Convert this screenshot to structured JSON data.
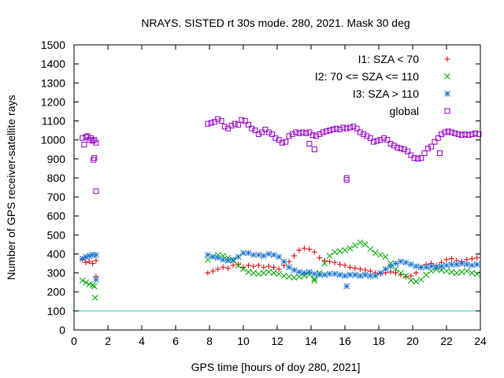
{
  "chart_data": {
    "type": "scatter",
    "title": "NRAYS. SISTED rt 30s mode. 280, 2021. Mask 30 deg",
    "xlabel": "GPS time [hours of doy 280, 2021]",
    "ylabel": "Number of GPS receiver-satellite rays",
    "xlim": [
      0,
      24
    ],
    "ylim": [
      0,
      1500
    ],
    "xticks": [
      0,
      2,
      4,
      6,
      8,
      10,
      12,
      14,
      16,
      18,
      20,
      22,
      24
    ],
    "yticks": [
      0,
      100,
      200,
      300,
      400,
      500,
      600,
      700,
      800,
      900,
      1000,
      1100,
      1200,
      1300,
      1400,
      1500
    ],
    "reference_line": {
      "y": 100,
      "color": "#33cccc"
    },
    "legend_position": "top-right",
    "series": [
      {
        "name": "I1: SZA < 70",
        "marker": "plus",
        "color": "#dd0000",
        "points": [
          [
            0.5,
            370
          ],
          [
            0.7,
            355
          ],
          [
            0.9,
            360
          ],
          [
            1.1,
            350
          ],
          [
            1.3,
            365
          ],
          [
            1.3,
            280
          ],
          [
            7.9,
            300
          ],
          [
            8.2,
            310
          ],
          [
            8.5,
            320
          ],
          [
            8.8,
            330
          ],
          [
            9.1,
            325
          ],
          [
            9.4,
            340
          ],
          [
            9.7,
            345
          ],
          [
            10.0,
            330
          ],
          [
            10.3,
            340
          ],
          [
            10.6,
            335
          ],
          [
            10.9,
            340
          ],
          [
            11.2,
            330
          ],
          [
            11.5,
            335
          ],
          [
            11.8,
            330
          ],
          [
            12.1,
            320
          ],
          [
            12.4,
            340
          ],
          [
            12.7,
            360
          ],
          [
            13.0,
            390
          ],
          [
            13.3,
            420
          ],
          [
            13.6,
            430
          ],
          [
            13.9,
            425
          ],
          [
            14.2,
            410
          ],
          [
            14.5,
            380
          ],
          [
            14.8,
            365
          ],
          [
            15.1,
            360
          ],
          [
            15.4,
            355
          ],
          [
            15.7,
            345
          ],
          [
            16.0,
            340
          ],
          [
            16.3,
            330
          ],
          [
            16.6,
            325
          ],
          [
            16.9,
            320
          ],
          [
            17.2,
            315
          ],
          [
            17.5,
            310
          ],
          [
            17.8,
            300
          ],
          [
            18.1,
            295
          ],
          [
            18.4,
            300
          ],
          [
            18.7,
            305
          ],
          [
            19.0,
            300
          ],
          [
            19.3,
            290
          ],
          [
            19.6,
            280
          ],
          [
            19.9,
            285
          ],
          [
            20.2,
            300
          ],
          [
            20.5,
            330
          ],
          [
            20.8,
            345
          ],
          [
            21.1,
            350
          ],
          [
            21.4,
            340
          ],
          [
            21.7,
            355
          ],
          [
            22.0,
            370
          ],
          [
            22.3,
            375
          ],
          [
            22.6,
            365
          ],
          [
            22.9,
            360
          ],
          [
            23.2,
            370
          ],
          [
            23.5,
            375
          ],
          [
            23.8,
            380
          ]
        ]
      },
      {
        "name": "I2: 70 <= SZA <= 110",
        "marker": "cross",
        "color": "#00aa00",
        "points": [
          [
            0.5,
            260
          ],
          [
            0.7,
            250
          ],
          [
            0.9,
            240
          ],
          [
            1.1,
            235
          ],
          [
            1.2,
            230
          ],
          [
            1.25,
            170
          ],
          [
            7.9,
            370
          ],
          [
            8.2,
            385
          ],
          [
            8.5,
            395
          ],
          [
            8.8,
            390
          ],
          [
            9.1,
            380
          ],
          [
            9.4,
            365
          ],
          [
            9.7,
            340
          ],
          [
            10.0,
            320
          ],
          [
            10.3,
            305
          ],
          [
            10.6,
            300
          ],
          [
            10.9,
            295
          ],
          [
            11.2,
            300
          ],
          [
            11.5,
            305
          ],
          [
            11.8,
            300
          ],
          [
            12.1,
            295
          ],
          [
            12.4,
            285
          ],
          [
            12.7,
            280
          ],
          [
            13.0,
            275
          ],
          [
            13.3,
            280
          ],
          [
            13.6,
            285
          ],
          [
            13.9,
            290
          ],
          [
            14.2,
            270
          ],
          [
            14.5,
            300
          ],
          [
            14.8,
            350
          ],
          [
            15.1,
            390
          ],
          [
            15.4,
            410
          ],
          [
            15.7,
            415
          ],
          [
            16.0,
            420
          ],
          [
            16.3,
            430
          ],
          [
            16.6,
            445
          ],
          [
            16.9,
            460
          ],
          [
            17.2,
            450
          ],
          [
            17.5,
            425
          ],
          [
            17.8,
            405
          ],
          [
            18.1,
            395
          ],
          [
            18.4,
            385
          ],
          [
            18.7,
            350
          ],
          [
            19.0,
            320
          ],
          [
            19.3,
            300
          ],
          [
            19.6,
            285
          ],
          [
            19.9,
            260
          ],
          [
            20.2,
            255
          ],
          [
            20.5,
            265
          ],
          [
            20.8,
            290
          ],
          [
            21.1,
            310
          ],
          [
            21.4,
            320
          ],
          [
            21.7,
            315
          ],
          [
            22.0,
            310
          ],
          [
            22.3,
            305
          ],
          [
            22.6,
            300
          ],
          [
            22.9,
            305
          ],
          [
            23.2,
            310
          ],
          [
            23.5,
            300
          ],
          [
            23.8,
            295
          ],
          [
            14.2,
            260
          ]
        ]
      },
      {
        "name": "I3: SZA > 110",
        "marker": "star",
        "color": "#1a75d1",
        "points": [
          [
            0.5,
            375
          ],
          [
            0.7,
            385
          ],
          [
            0.9,
            390
          ],
          [
            1.1,
            395
          ],
          [
            1.3,
            395
          ],
          [
            1.3,
            265
          ],
          [
            7.9,
            395
          ],
          [
            8.2,
            385
          ],
          [
            8.5,
            380
          ],
          [
            8.8,
            370
          ],
          [
            9.1,
            365
          ],
          [
            9.4,
            370
          ],
          [
            9.7,
            385
          ],
          [
            10.0,
            405
          ],
          [
            10.3,
            405
          ],
          [
            10.6,
            395
          ],
          [
            10.9,
            395
          ],
          [
            11.2,
            390
          ],
          [
            11.5,
            400
          ],
          [
            11.8,
            395
          ],
          [
            12.1,
            385
          ],
          [
            12.4,
            360
          ],
          [
            12.7,
            330
          ],
          [
            13.0,
            315
          ],
          [
            13.3,
            305
          ],
          [
            13.6,
            300
          ],
          [
            13.9,
            305
          ],
          [
            14.2,
            295
          ],
          [
            14.5,
            290
          ],
          [
            14.8,
            290
          ],
          [
            15.1,
            295
          ],
          [
            15.4,
            295
          ],
          [
            15.7,
            290
          ],
          [
            16.0,
            285
          ],
          [
            16.3,
            290
          ],
          [
            16.6,
            290
          ],
          [
            16.9,
            285
          ],
          [
            17.2,
            290
          ],
          [
            17.5,
            285
          ],
          [
            17.8,
            285
          ],
          [
            18.1,
            300
          ],
          [
            18.4,
            320
          ],
          [
            18.7,
            335
          ],
          [
            19.0,
            350
          ],
          [
            19.3,
            360
          ],
          [
            19.6,
            355
          ],
          [
            19.9,
            345
          ],
          [
            20.2,
            335
          ],
          [
            20.5,
            330
          ],
          [
            20.8,
            330
          ],
          [
            21.1,
            335
          ],
          [
            21.4,
            330
          ],
          [
            21.7,
            335
          ],
          [
            22.0,
            340
          ],
          [
            22.3,
            345
          ],
          [
            22.6,
            345
          ],
          [
            22.9,
            350
          ],
          [
            23.2,
            345
          ],
          [
            23.5,
            340
          ],
          [
            23.8,
            345
          ],
          [
            16.1,
            230
          ]
        ]
      },
      {
        "name": "global",
        "marker": "square",
        "color": "#9900cc",
        "points": [
          [
            0.5,
            1010
          ],
          [
            0.6,
            975
          ],
          [
            0.7,
            1015
          ],
          [
            0.8,
            1020
          ],
          [
            0.9,
            1000
          ],
          [
            1.0,
            1010
          ],
          [
            1.1,
            995
          ],
          [
            1.2,
            1000
          ],
          [
            1.3,
            985
          ],
          [
            1.15,
            895
          ],
          [
            1.2,
            905
          ],
          [
            1.3,
            730
          ],
          [
            7.9,
            1085
          ],
          [
            8.1,
            1090
          ],
          [
            8.3,
            1095
          ],
          [
            8.5,
            1110
          ],
          [
            8.7,
            1100
          ],
          [
            8.9,
            1070
          ],
          [
            9.1,
            1060
          ],
          [
            9.3,
            1075
          ],
          [
            9.5,
            1085
          ],
          [
            9.7,
            1080
          ],
          [
            9.9,
            1105
          ],
          [
            10.1,
            1100
          ],
          [
            10.3,
            1080
          ],
          [
            10.5,
            1060
          ],
          [
            10.7,
            1050
          ],
          [
            10.9,
            1030
          ],
          [
            11.1,
            1040
          ],
          [
            11.3,
            1055
          ],
          [
            11.5,
            1040
          ],
          [
            11.7,
            1030
          ],
          [
            11.9,
            1010
          ],
          [
            12.1,
            1000
          ],
          [
            12.3,
            985
          ],
          [
            12.5,
            990
          ],
          [
            12.7,
            1020
          ],
          [
            12.9,
            1030
          ],
          [
            13.1,
            1040
          ],
          [
            13.3,
            1035
          ],
          [
            13.5,
            1040
          ],
          [
            13.7,
            1035
          ],
          [
            13.9,
            1040
          ],
          [
            14.1,
            1025
          ],
          [
            14.3,
            1020
          ],
          [
            14.5,
            1030
          ],
          [
            14.7,
            1040
          ],
          [
            14.9,
            1045
          ],
          [
            15.1,
            1050
          ],
          [
            15.3,
            1055
          ],
          [
            15.5,
            1060
          ],
          [
            15.7,
            1055
          ],
          [
            15.9,
            1065
          ],
          [
            16.1,
            1060
          ],
          [
            16.3,
            1065
          ],
          [
            16.5,
            1070
          ],
          [
            16.7,
            1060
          ],
          [
            16.9,
            1040
          ],
          [
            17.1,
            1030
          ],
          [
            17.3,
            1020
          ],
          [
            17.5,
            1010
          ],
          [
            17.7,
            990
          ],
          [
            17.9,
            995
          ],
          [
            18.1,
            1000
          ],
          [
            18.3,
            1010
          ],
          [
            18.5,
            1000
          ],
          [
            18.7,
            980
          ],
          [
            18.9,
            970
          ],
          [
            19.1,
            960
          ],
          [
            19.3,
            955
          ],
          [
            19.5,
            950
          ],
          [
            19.7,
            940
          ],
          [
            19.9,
            920
          ],
          [
            20.1,
            905
          ],
          [
            20.3,
            900
          ],
          [
            20.5,
            905
          ],
          [
            20.7,
            930
          ],
          [
            20.9,
            955
          ],
          [
            21.1,
            965
          ],
          [
            21.3,
            990
          ],
          [
            21.5,
            1010
          ],
          [
            21.7,
            1030
          ],
          [
            21.9,
            1040
          ],
          [
            22.1,
            1045
          ],
          [
            22.3,
            1040
          ],
          [
            22.5,
            1035
          ],
          [
            22.7,
            1030
          ],
          [
            22.9,
            1025
          ],
          [
            23.1,
            1030
          ],
          [
            23.3,
            1025
          ],
          [
            23.5,
            1030
          ],
          [
            23.7,
            1035
          ],
          [
            23.9,
            1030
          ],
          [
            13.9,
            980
          ],
          [
            14.2,
            950
          ],
          [
            16.1,
            800
          ],
          [
            16.1,
            790
          ],
          [
            21.6,
            930
          ]
        ]
      }
    ]
  }
}
